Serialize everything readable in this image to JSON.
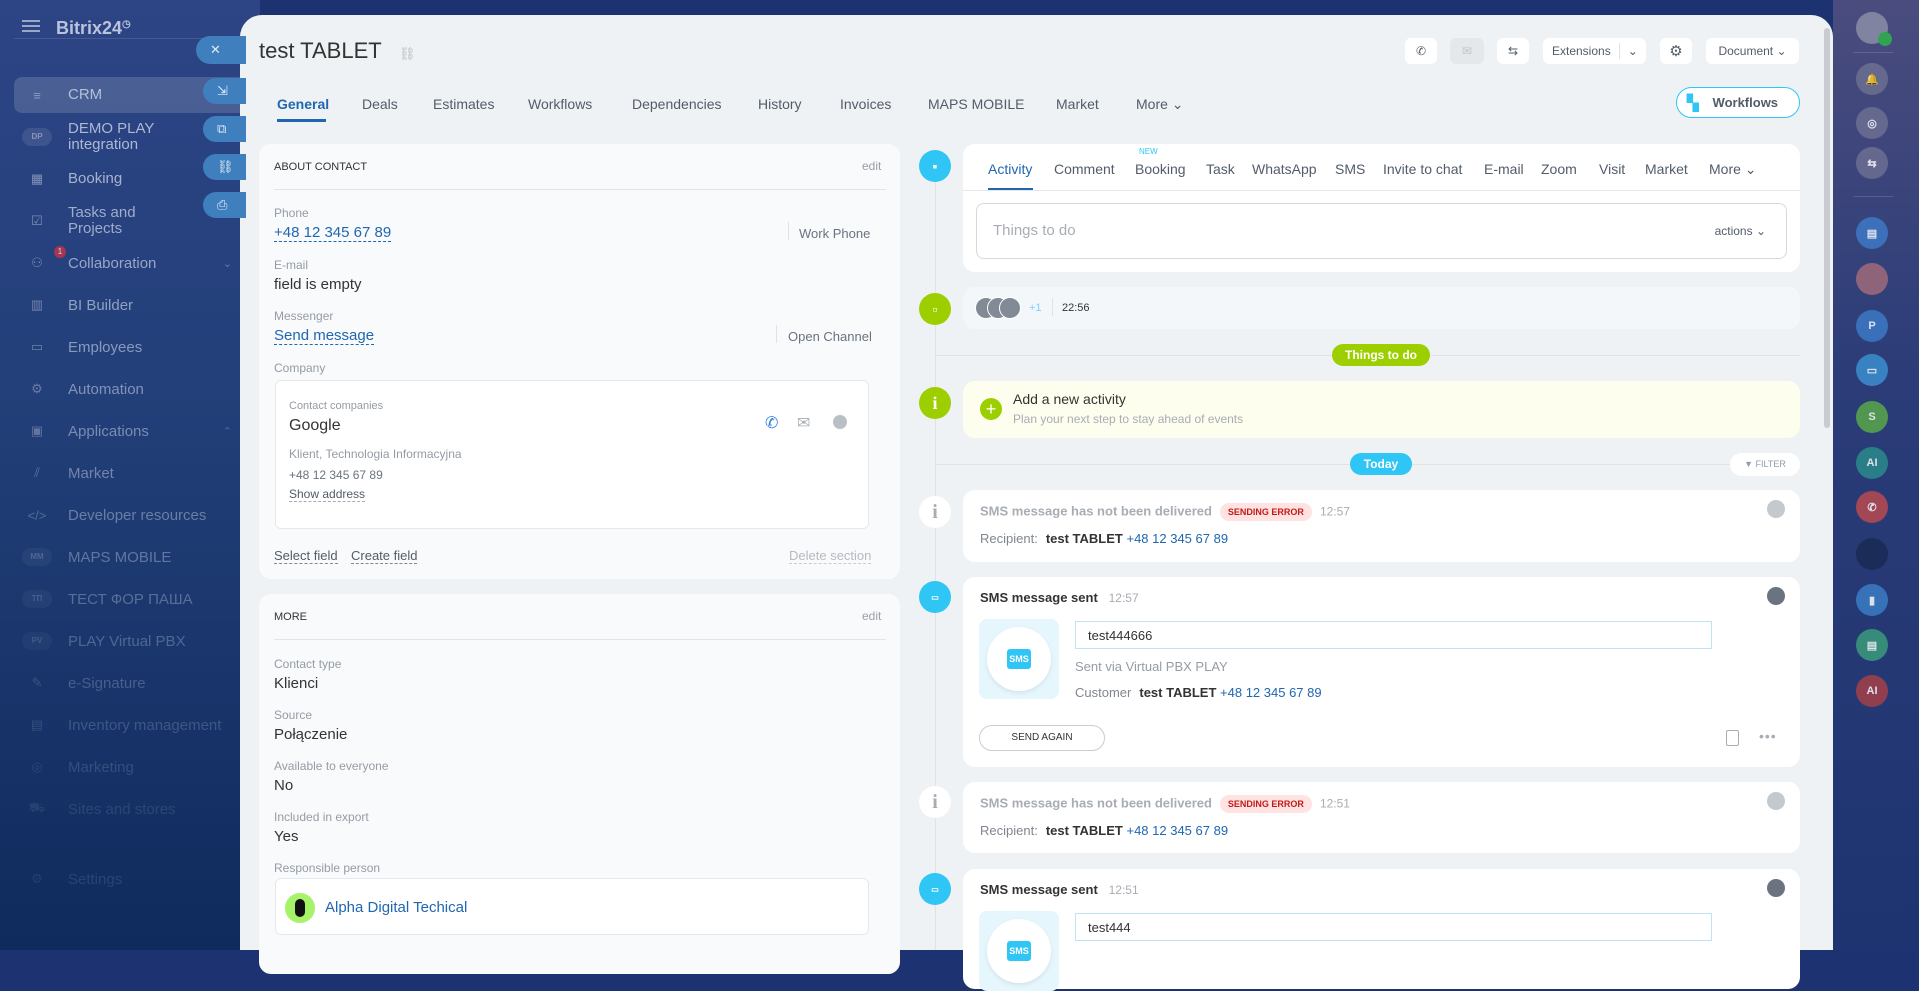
{
  "app": {
    "logo": "Bitrix24"
  },
  "sidebar": {
    "items": [
      {
        "label": "CRM",
        "icon": "funnel-icon",
        "glyph": "≡",
        "active": true
      },
      {
        "label": "DEMO PLAY integration",
        "icon": "app-badge-icon",
        "abbr": "DP"
      },
      {
        "label": "Booking",
        "icon": "calendar-icon",
        "glyph": "▦"
      },
      {
        "label": "Tasks and Projects",
        "icon": "checkbox-icon",
        "glyph": "☑"
      },
      {
        "label": "Collaboration",
        "icon": "collab-icon",
        "glyph": "⚇",
        "badge": "1",
        "chevron": "down"
      },
      {
        "label": "BI Builder",
        "icon": "bar-chart-icon",
        "glyph": "▥"
      },
      {
        "label": "Employees",
        "icon": "id-card-icon",
        "glyph": "▭"
      },
      {
        "label": "Automation",
        "icon": "robot-icon",
        "glyph": "⚙"
      },
      {
        "label": "Applications",
        "icon": "box-icon",
        "glyph": "▣",
        "chevron": "up"
      },
      {
        "label": "Market",
        "icon": "market-icon",
        "glyph": "⫽"
      },
      {
        "label": "Developer resources",
        "icon": "code-icon",
        "glyph": "</>"
      },
      {
        "label": "MAPS MOBILE",
        "icon": "app-badge-icon",
        "abbr": "MM"
      },
      {
        "label": "ТЕСТ ФОР ПАША",
        "icon": "app-badge-icon",
        "abbr": "ТП"
      },
      {
        "label": "PLAY Virtual PBX",
        "icon": "app-badge-icon",
        "abbr": "PV"
      },
      {
        "label": "e-Signature",
        "icon": "pen-icon",
        "glyph": "✎"
      },
      {
        "label": "Inventory management",
        "icon": "inventory-icon",
        "glyph": "▤"
      },
      {
        "label": "Marketing",
        "icon": "target-icon",
        "glyph": "◎"
      },
      {
        "label": "Sites and stores",
        "icon": "cart-icon",
        "glyph": "⛟"
      },
      {
        "label": "Settings",
        "icon": "gear-icon",
        "glyph": "⚙"
      }
    ]
  },
  "side_buttons": [
    {
      "icon": "close-icon",
      "glyph": "✕"
    },
    {
      "icon": "minimize-icon",
      "glyph": "⇲"
    },
    {
      "icon": "open-new-window-icon",
      "glyph": "⧉"
    },
    {
      "icon": "link-icon",
      "glyph": "⛓"
    },
    {
      "icon": "print-icon",
      "glyph": "⎙"
    }
  ],
  "header": {
    "title": "test TABLET",
    "extensions": "Extensions",
    "document": "Document",
    "workflows": "Workflows"
  },
  "tabs": [
    "General",
    "Deals",
    "Estimates",
    "Workflows",
    "Dependencies",
    "History",
    "Invoices",
    "MAPS MOBILE",
    "Market",
    "More"
  ],
  "about": {
    "title": "ABOUT CONTACT",
    "edit": "edit",
    "phone_label": "Phone",
    "phone": "+48 12 345 67 89",
    "phone_type": "Work Phone",
    "email_label": "E-mail",
    "email": "field is empty",
    "messenger_label": "Messenger",
    "messenger": "Send message",
    "messenger_action": "Open Channel",
    "company_label": "Company",
    "company_sub": "Contact companies",
    "company": "Google",
    "company_desc": "Klient, Technologia Informacyjna",
    "company_phone": "+48 12 345 67 89",
    "show_address": "Show address",
    "select_field": "Select field",
    "create_field": "Create field",
    "delete_section": "Delete section"
  },
  "more": {
    "title": "MORE",
    "edit": "edit",
    "fields": [
      {
        "label": "Contact type",
        "value": "Klienci"
      },
      {
        "label": "Source",
        "value": "Połączenie"
      },
      {
        "label": "Available to everyone",
        "value": "No"
      },
      {
        "label": "Included in export",
        "value": "Yes"
      }
    ],
    "responsible_label": "Responsible person",
    "responsible": "Alpha Digital Techical"
  },
  "timeline": {
    "tabs": [
      "Activity",
      "Comment",
      "Booking",
      "Task",
      "WhatsApp",
      "SMS",
      "Invite to chat",
      "E-mail",
      "Zoom",
      "Visit",
      "Market",
      "More"
    ],
    "new_badge": "NEW",
    "placeholder": "Things to do",
    "actions": "actions",
    "comment": {
      "extra": "+1",
      "time": "22:56"
    },
    "things_pill": "Things to do",
    "add_title": "Add a new activity",
    "add_sub": "Plan your next step to stay ahead of events",
    "today_pill": "Today",
    "filter": "FILTER",
    "entries": [
      {
        "type": "error",
        "title": "SMS message has not been delivered",
        "badge": "SENDING ERROR",
        "time": "12:57",
        "recipient_label": "Recipient:",
        "name": "test TABLET",
        "phone": "+48 12 345 67 89"
      },
      {
        "type": "sent",
        "title": "SMS message sent",
        "time": "12:57",
        "message": "test444666",
        "via": "Sent via Virtual PBX PLAY",
        "customer_label": "Customer",
        "name": "test TABLET",
        "phone": "+48 12 345 67 89",
        "button": "SEND AGAIN"
      },
      {
        "type": "error",
        "title": "SMS message has not been delivered",
        "badge": "SENDING ERROR",
        "time": "12:51",
        "recipient_label": "Recipient:",
        "name": "test TABLET",
        "phone": "+48 12 345 67 89"
      },
      {
        "type": "sent",
        "title": "SMS message sent",
        "time": "12:51",
        "message": "test444"
      }
    ],
    "sms_logo": "SMS"
  },
  "rightbar": [
    {
      "icon": "user-avatar-icon",
      "color": "#8a8fa6"
    },
    {
      "icon": "bell-icon",
      "color": "#6d6f92",
      "glyph": "🔔"
    },
    {
      "icon": "copilot-icon",
      "color": "#6d6f92",
      "glyph": "◎"
    },
    {
      "icon": "chat-sync-icon",
      "color": "#6d6f92",
      "glyph": "⇆"
    },
    {
      "icon": "contact-card-icon",
      "color": "#3d79c6",
      "glyph": "▤"
    },
    {
      "icon": "user-photo-icon",
      "color": "#a06a7a"
    },
    {
      "icon": "app-p-icon",
      "color": "#3c78c6",
      "glyph": "P"
    },
    {
      "icon": "messages-icon",
      "color": "#3c8fd0",
      "glyph": "▭"
    },
    {
      "icon": "app-s-icon",
      "color": "#5aa84a",
      "glyph": "S"
    },
    {
      "icon": "ai-icon",
      "color": "#2b8a8a",
      "glyph": "AI"
    },
    {
      "icon": "phone-app-icon",
      "color": "#b94a50",
      "glyph": "✆"
    },
    {
      "icon": "dark-app-icon",
      "color": "#1b2a55"
    },
    {
      "icon": "bookmark-icon",
      "color": "#3a7cc4",
      "glyph": "▮"
    },
    {
      "icon": "news-icon",
      "color": "#3a9a7a",
      "glyph": "▤"
    },
    {
      "icon": "ai-red-icon",
      "color": "#a54048",
      "glyph": "AI"
    }
  ]
}
